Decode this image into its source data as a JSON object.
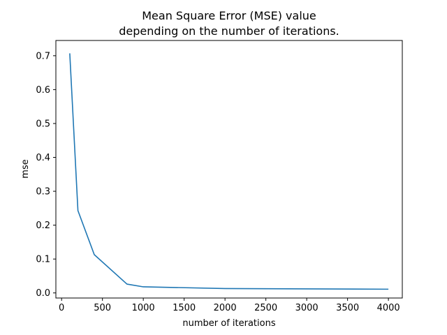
{
  "chart_data": {
    "type": "line",
    "title_line1": "Mean Square Error (MSE) value",
    "title_line2": "depending on the number of iterations.",
    "xlabel": "number of iterations",
    "ylabel": "mse",
    "xlim": [
      -70,
      4170
    ],
    "ylim": [
      -0.015,
      0.745
    ],
    "xticks": [
      0,
      500,
      1000,
      1500,
      2000,
      2500,
      3000,
      3500,
      4000
    ],
    "xtick_labels": [
      "0",
      "500",
      "1000",
      "1500",
      "2000",
      "2500",
      "3000",
      "3500",
      "4000"
    ],
    "yticks": [
      0.0,
      0.1,
      0.2,
      0.3,
      0.4,
      0.5,
      0.6,
      0.7
    ],
    "ytick_labels": [
      "0.0",
      "0.1",
      "0.2",
      "0.3",
      "0.4",
      "0.5",
      "0.6",
      "0.7"
    ],
    "grid": false,
    "line_color": "#1f77b4",
    "series": [
      {
        "x": [
          100,
          200,
          400,
          800,
          1000,
          2000,
          4000
        ],
        "y": [
          0.707,
          0.243,
          0.113,
          0.026,
          0.018,
          0.013,
          0.011
        ]
      }
    ]
  }
}
